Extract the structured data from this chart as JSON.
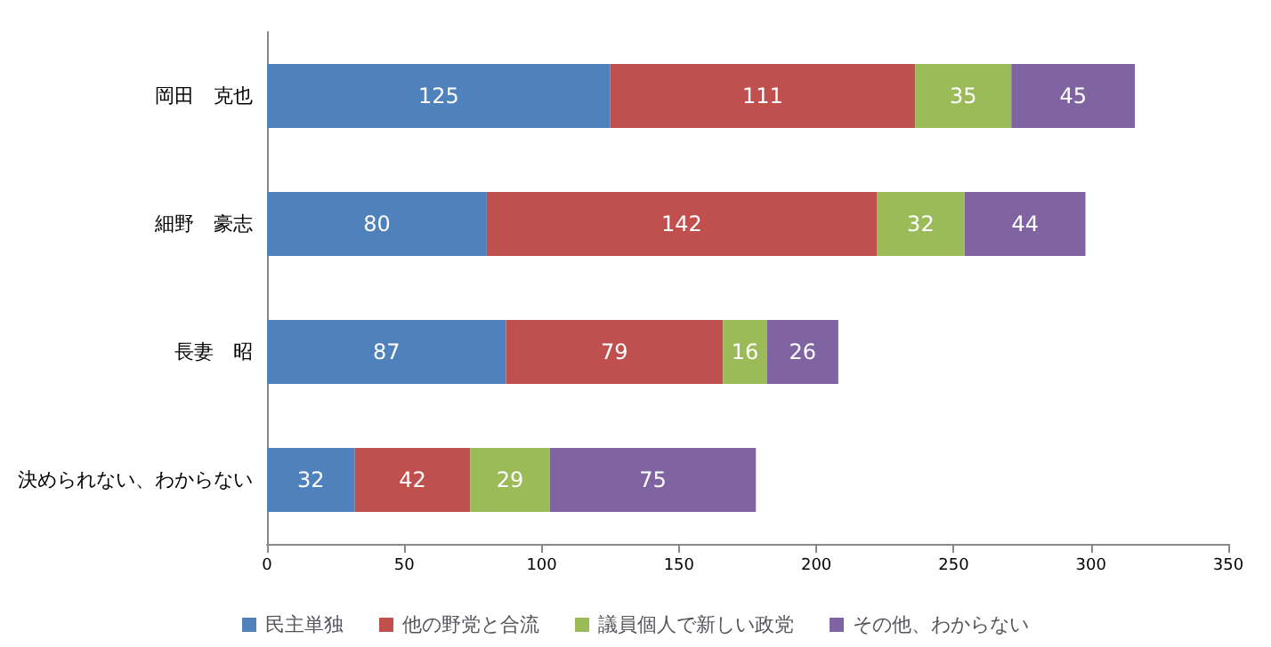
{
  "chart_data": {
    "type": "bar",
    "orientation": "horizontal",
    "stacked": true,
    "data_labels": true,
    "legend": "bottom",
    "grid": false,
    "categories": [
      "岡田　克也",
      "細野　豪志",
      "長妻　昭",
      "決められない、わからない"
    ],
    "series": [
      {
        "name": "民主単独",
        "color": "#4f81bd",
        "values": [
          125,
          80,
          87,
          32
        ]
      },
      {
        "name": "他の野党と合流",
        "color": "#c0504d",
        "values": [
          111,
          142,
          79,
          42
        ]
      },
      {
        "name": "議員個人で新しい政党",
        "color": "#9bbb59",
        "values": [
          35,
          32,
          16,
          29
        ]
      },
      {
        "name": "その他、わからない",
        "color": "#8064a2",
        "values": [
          45,
          44,
          26,
          75
        ]
      }
    ],
    "xlim": [
      0,
      350
    ],
    "xticks": [
      0,
      50,
      100,
      150,
      200,
      250,
      300,
      350
    ]
  }
}
